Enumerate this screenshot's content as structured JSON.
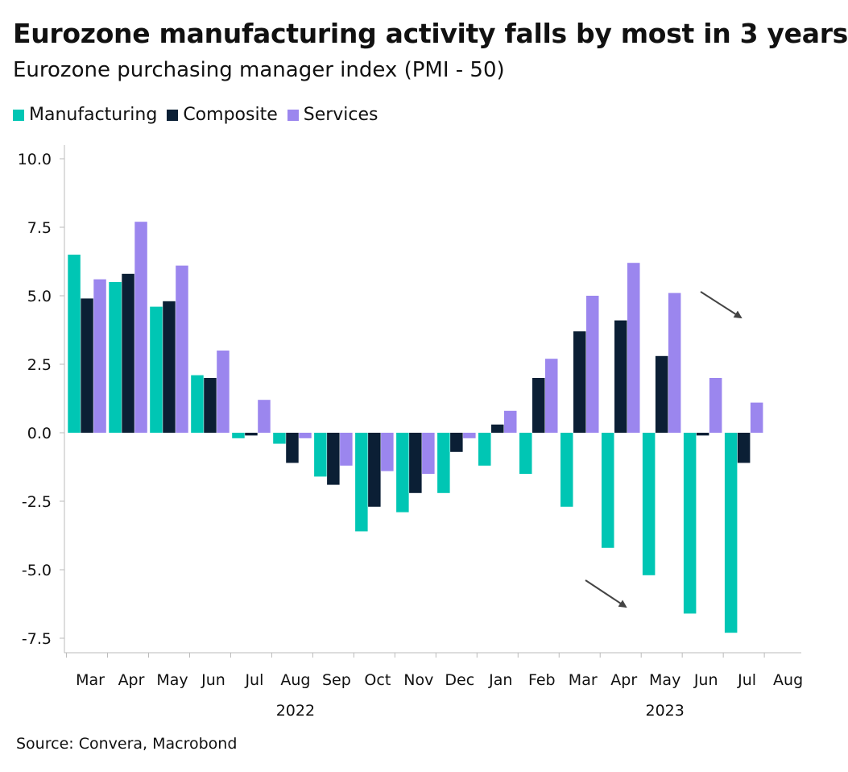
{
  "chart_data": {
    "type": "bar",
    "title": "Eurozone manufacturing activity falls by most in 3 years",
    "subtitle": "Eurozone purchasing manager index (PMI - 50)",
    "categories": [
      "Mar",
      "Apr",
      "May",
      "Jun",
      "Jul",
      "Aug",
      "Sep",
      "Oct",
      "Nov",
      "Dec",
      "Jan",
      "Feb",
      "Mar",
      "Apr",
      "May",
      "Jun",
      "Jul",
      "Aug"
    ],
    "years": [
      {
        "label": "2022",
        "center_category": 5
      },
      {
        "label": "2023",
        "center_category": 14
      }
    ],
    "series": [
      {
        "name": "Manufacturing",
        "color": "#00c6b4",
        "values": [
          6.5,
          5.5,
          4.6,
          2.1,
          -0.2,
          -0.4,
          -1.6,
          -3.6,
          -2.9,
          -2.2,
          -1.2,
          -1.5,
          -2.7,
          -4.2,
          -5.2,
          -6.6,
          -7.3,
          null
        ]
      },
      {
        "name": "Composite",
        "color": "#0b1f35",
        "values": [
          4.9,
          5.8,
          4.8,
          2.0,
          -0.1,
          -1.1,
          -1.9,
          -2.7,
          -2.2,
          -0.7,
          0.3,
          2.0,
          3.7,
          4.1,
          2.8,
          -0.1,
          -1.1,
          null
        ]
      },
      {
        "name": "Services",
        "color": "#9b86ee",
        "values": [
          5.6,
          7.7,
          6.1,
          3.0,
          1.2,
          -0.2,
          -1.2,
          -1.4,
          -1.5,
          -0.2,
          0.8,
          2.7,
          5.0,
          6.2,
          5.1,
          2.0,
          1.1,
          null
        ]
      }
    ],
    "y_ticks": [
      "10.0",
      "7.5",
      "5.0",
      "2.5",
      "0.0",
      "-2.5",
      "-5.0",
      "-7.5"
    ],
    "ylim": [
      -8.3,
      10.5
    ],
    "xlabel": "",
    "ylabel": "",
    "annotations": [
      "arrow-down-right",
      "arrow-down-right"
    ]
  },
  "source": "Source: Convera, Macrobond"
}
